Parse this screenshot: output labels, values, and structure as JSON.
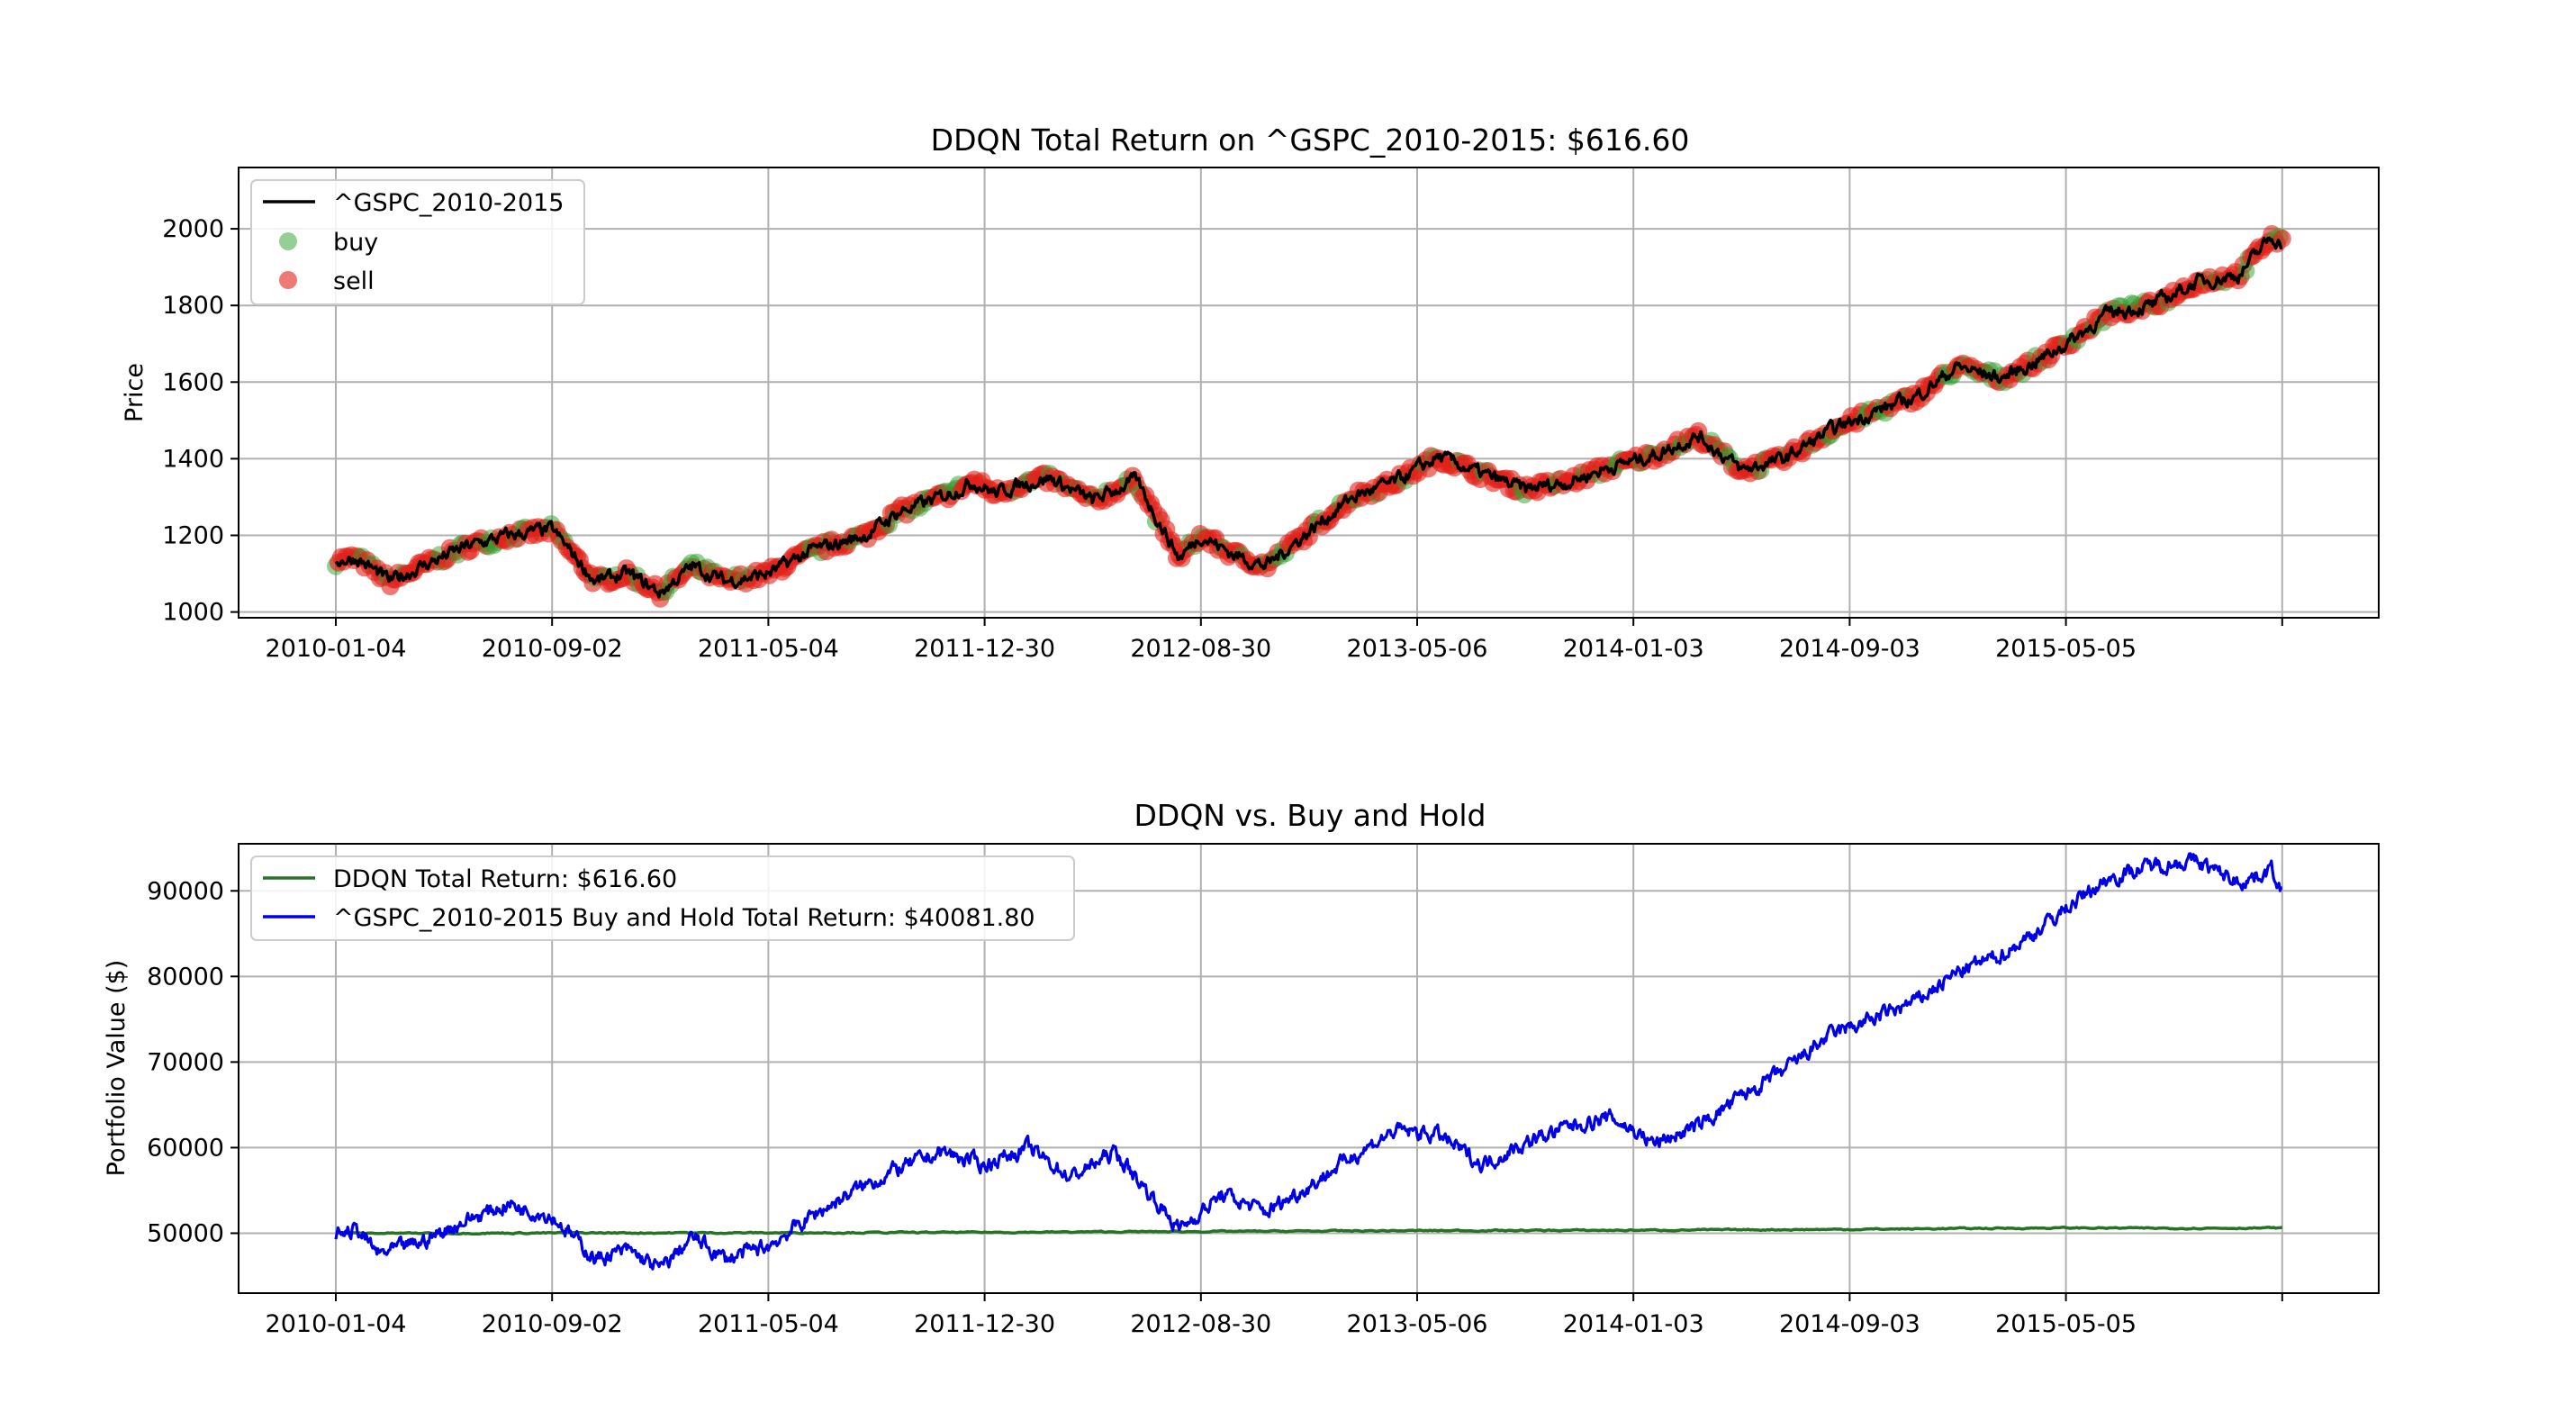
{
  "chart_data": [
    {
      "type": "line",
      "title": "DDQN Total Return on ^GSPC_2010-2015: $616.60",
      "xlabel": "",
      "ylabel": "Price",
      "ylim": [
        985,
        2160
      ],
      "yticks": [
        1000,
        1200,
        1400,
        1600,
        1800,
        2000
      ],
      "x_tick_labels": [
        "2010-01-04",
        "2010-09-02",
        "2011-05-04",
        "2011-12-30",
        "2012-08-30",
        "2013-05-06",
        "2014-01-03",
        "2014-09-03",
        "2015-05-05",
        ""
      ],
      "grid": true,
      "legend_position": "upper-left",
      "legend": [
        "^GSPC_2010-2015",
        "buy",
        "sell"
      ],
      "series": [
        {
          "name": "^GSPC_2010-2015",
          "color": "#000000",
          "style": "line",
          "x": [
            0,
            0.1,
            0.25,
            0.4,
            0.6,
            0.8,
            1,
            1.2,
            1.35,
            1.5,
            1.65,
            1.8,
            2,
            2.2,
            2.45,
            2.6,
            2.8,
            2.95,
            3.05,
            3.15,
            3.3,
            3.5,
            3.7,
            3.9,
            4,
            4.15,
            4.3,
            4.5,
            4.7,
            4.9,
            5.1,
            5.3,
            5.5,
            5.7,
            5.9,
            6.1,
            6.3,
            6.5,
            6.7,
            6.9,
            7.1,
            7.3,
            7.5,
            7.7,
            7.85,
            8,
            8.2,
            8.4,
            8.6,
            8.8,
            8.95,
            9
          ],
          "y": [
            1135,
            1140,
            1080,
            1120,
            1170,
            1200,
            1215,
            1080,
            1100,
            1050,
            1120,
            1080,
            1100,
            1160,
            1200,
            1260,
            1300,
            1340,
            1310,
            1330,
            1350,
            1290,
            1345,
            1140,
            1200,
            1150,
            1120,
            1210,
            1300,
            1340,
            1405,
            1360,
            1320,
            1340,
            1380,
            1410,
            1460,
            1370,
            1400,
            1470,
            1520,
            1560,
            1640,
            1610,
            1650,
            1700,
            1780,
            1800,
            1860,
            1880,
            1980,
            1960
          ]
        },
        {
          "name": "buy",
          "color": "#2ca02c",
          "style": "scatter"
        },
        {
          "name": "sell",
          "color": "#e32219",
          "style": "scatter"
        }
      ]
    },
    {
      "type": "line",
      "title": "DDQN vs. Buy and Hold",
      "xlabel": "",
      "ylabel": "Portfolio Value ($)",
      "ylim": [
        43000,
        95500
      ],
      "yticks": [
        50000,
        60000,
        70000,
        80000,
        90000
      ],
      "x_tick_labels": [
        "2010-01-04",
        "2010-09-02",
        "2011-05-04",
        "2011-12-30",
        "2012-08-30",
        "2013-05-06",
        "2014-01-03",
        "2014-09-03",
        "2015-05-05",
        ""
      ],
      "grid": true,
      "legend_position": "upper-left",
      "series": [
        {
          "name": "DDQN Total Return: $616.60",
          "color": "#267326",
          "x": [
            0,
            0.5,
            1,
            2,
            3,
            4,
            5,
            6,
            7,
            7.5,
            8,
            8.5,
            9
          ],
          "y": [
            50000,
            50000,
            50030,
            50050,
            50100,
            50200,
            50300,
            50350,
            50450,
            50550,
            50620,
            50580,
            50617
          ]
        },
        {
          "name": "^GSPC_2010-2015 Buy and Hold Total Return: $40081.80",
          "color": "#0000e6",
          "x": [
            0,
            0.1,
            0.2,
            0.4,
            0.6,
            0.8,
            1,
            1.2,
            1.35,
            1.5,
            1.65,
            1.8,
            2,
            2.2,
            2.4,
            2.6,
            2.8,
            3,
            3.2,
            3.4,
            3.6,
            3.8,
            3.9,
            4.1,
            4.3,
            4.5,
            4.7,
            4.9,
            5.1,
            5.3,
            5.5,
            5.7,
            5.9,
            6.1,
            6.3,
            6.5,
            6.7,
            6.9,
            7.1,
            7.3,
            7.5,
            7.7,
            7.85,
            8,
            8.2,
            8.4,
            8.6,
            8.8,
            8.95,
            9
          ],
          "y": [
            50000,
            50400,
            47500,
            49000,
            51500,
            53400,
            52000,
            47000,
            48000,
            45800,
            49500,
            47000,
            48500,
            52000,
            55000,
            57500,
            59500,
            58000,
            60000,
            56500,
            59500,
            53500,
            50500,
            54500,
            52500,
            55500,
            59000,
            62000,
            61500,
            58000,
            60500,
            62500,
            63500,
            60500,
            62500,
            66000,
            69000,
            73000,
            75000,
            77000,
            80500,
            82500,
            85000,
            88000,
            91500,
            93000,
            93500,
            91000,
            92500,
            90082
          ]
        }
      ]
    }
  ]
}
